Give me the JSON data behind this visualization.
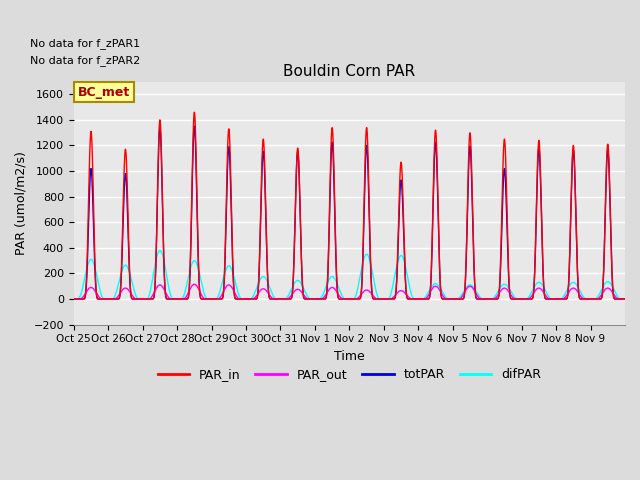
{
  "title": "Bouldin Corn PAR",
  "ylabel": "PAR (umol/m2/s)",
  "xlabel": "Time",
  "ylim": [
    -200,
    1700
  ],
  "yticks": [
    -200,
    0,
    200,
    400,
    600,
    800,
    1000,
    1200,
    1400,
    1600
  ],
  "no_data_text1": "No data for f_zPAR1",
  "no_data_text2": "No data for f_zPAR2",
  "legend_label": "BC_met",
  "x_tick_labels": [
    "Oct 25",
    "Oct 26",
    "Oct 27",
    "Oct 28",
    "Oct 29",
    "Oct 30",
    "Oct 31",
    "Nov 1",
    "Nov 2",
    "Nov 3",
    "Nov 4",
    "Nov 5",
    "Nov 6",
    "Nov 7",
    "Nov 8",
    "Nov 9"
  ],
  "colors": {
    "PAR_in": "#FF0000",
    "PAR_out": "#FF00FF",
    "totPAR": "#0000DD",
    "difPAR": "#00FFFF"
  },
  "background_color": "#DCDCDC",
  "plot_bg_color": "#E8E8E8",
  "legend_box_facecolor": "#FFFF99",
  "legend_box_edgecolor": "#AA8800",
  "grid_color": "#FFFFFF",
  "num_days": 16,
  "par_in_peaks": [
    1310,
    1170,
    1400,
    1460,
    1330,
    1250,
    1180,
    1340,
    1340,
    1070,
    1320,
    1300,
    1250,
    1240,
    1200,
    1210
  ],
  "par_out_peaks": [
    90,
    85,
    110,
    115,
    110,
    80,
    75,
    90,
    70,
    65,
    100,
    100,
    85,
    85,
    85,
    85
  ],
  "totPAR_peaks": [
    1020,
    980,
    1340,
    1350,
    1190,
    1155,
    1155,
    1225,
    1200,
    930,
    1225,
    1195,
    1020,
    1175,
    1165,
    1170
  ],
  "difPAR_peaks": [
    310,
    265,
    380,
    300,
    260,
    175,
    145,
    175,
    350,
    340,
    120,
    110,
    115,
    130,
    130,
    135
  ]
}
